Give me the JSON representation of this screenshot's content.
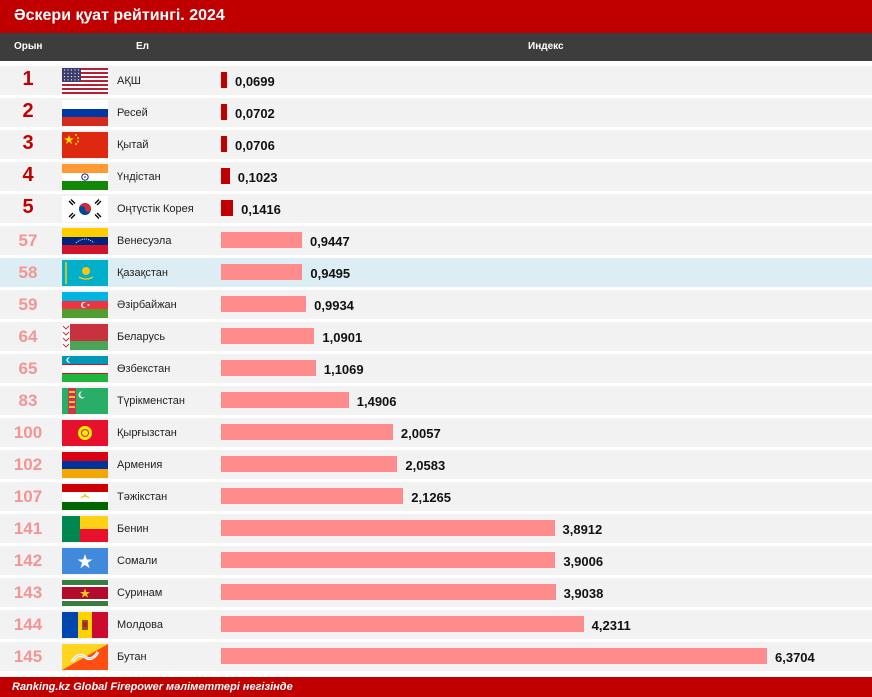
{
  "header": {
    "title": "Әскери қуат рейтингі. 2024"
  },
  "columns": {
    "rank": "Орын",
    "country": "Ел",
    "index": "Индекс"
  },
  "footer": {
    "source": "Ranking.kz Global Firepower мәліметтері негізінде"
  },
  "colors": {
    "title_bg": "#c00000",
    "header_bg": "#3d3d3d",
    "top_bar": "#c00000",
    "bar": "#ff8c8c",
    "rank_top": "#c00000",
    "rank_rest": "#f29595",
    "highlight_row": "#dcedf3"
  },
  "chart_data": {
    "type": "bar",
    "orientation": "horizontal",
    "title": "Әскери қуат рейтингі. 2024",
    "xlabel": "Индекс",
    "xlim": [
      0,
      6.3704
    ],
    "rows": [
      {
        "rank": "1",
        "country": "АҚШ",
        "value": 0.0699,
        "value_label": "0,0699",
        "flag": "us-flag",
        "top": true
      },
      {
        "rank": "2",
        "country": "Ресей",
        "value": 0.0702,
        "value_label": "0,0702",
        "flag": "russia-flag",
        "top": true
      },
      {
        "rank": "3",
        "country": "Қытай",
        "value": 0.0706,
        "value_label": "0,0706",
        "flag": "china-flag",
        "top": true
      },
      {
        "rank": "4",
        "country": "Үндістан",
        "value": 0.1023,
        "value_label": "0,1023",
        "flag": "india-flag",
        "top": true
      },
      {
        "rank": "5",
        "country": "Оңтүстік Корея",
        "value": 0.1416,
        "value_label": "0,1416",
        "flag": "south-korea-flag",
        "top": true
      },
      {
        "rank": "57",
        "country": "Венесуэла",
        "value": 0.9447,
        "value_label": "0,9447",
        "flag": "venezuela-flag",
        "top": false
      },
      {
        "rank": "58",
        "country": "Қазақстан",
        "value": 0.9495,
        "value_label": "0,9495",
        "flag": "kazakhstan-flag",
        "top": false,
        "highlight": true
      },
      {
        "rank": "59",
        "country": "Әзірбайжан",
        "value": 0.9934,
        "value_label": "0,9934",
        "flag": "azerbaijan-flag",
        "top": false
      },
      {
        "rank": "64",
        "country": "Беларусь",
        "value": 1.0901,
        "value_label": "1,0901",
        "flag": "belarus-flag",
        "top": false
      },
      {
        "rank": "65",
        "country": "Өзбекстан",
        "value": 1.1069,
        "value_label": "1,1069",
        "flag": "uzbekistan-flag",
        "top": false
      },
      {
        "rank": "83",
        "country": "Түрікменстан",
        "value": 1.4906,
        "value_label": "1,4906",
        "flag": "turkmenistan-flag",
        "top": false
      },
      {
        "rank": "100",
        "country": "Қырғызстан",
        "value": 2.0057,
        "value_label": "2,0057",
        "flag": "kyrgyzstan-flag",
        "top": false
      },
      {
        "rank": "102",
        "country": "Армения",
        "value": 2.0583,
        "value_label": "2,0583",
        "flag": "armenia-flag",
        "top": false
      },
      {
        "rank": "107",
        "country": "Тәжікстан",
        "value": 2.1265,
        "value_label": "2,1265",
        "flag": "tajikistan-flag",
        "top": false
      },
      {
        "rank": "141",
        "country": "Бенин",
        "value": 3.8912,
        "value_label": "3,8912",
        "flag": "benin-flag",
        "top": false
      },
      {
        "rank": "142",
        "country": "Сомали",
        "value": 3.9006,
        "value_label": "3,9006",
        "flag": "somalia-flag",
        "top": false
      },
      {
        "rank": "143",
        "country": "Суринам",
        "value": 3.9038,
        "value_label": "3,9038",
        "flag": "suriname-flag",
        "top": false
      },
      {
        "rank": "144",
        "country": "Молдова",
        "value": 4.2311,
        "value_label": "4,2311",
        "flag": "moldova-flag",
        "top": false
      },
      {
        "rank": "145",
        "country": "Бутан",
        "value": 6.3704,
        "value_label": "6,3704",
        "flag": "bhutan-flag",
        "top": false
      }
    ]
  }
}
